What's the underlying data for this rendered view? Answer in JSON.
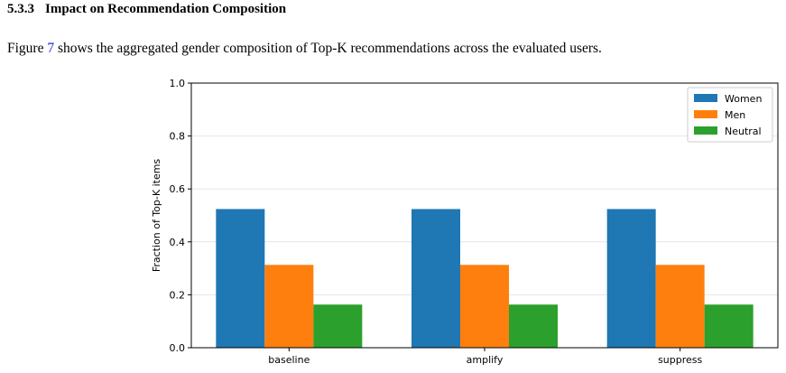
{
  "section": {
    "number": "5.3.3",
    "title": "Impact on Recommendation Composition"
  },
  "paragraph": {
    "before": "Figure ",
    "figure_ref": "7",
    "after": " shows the aggregated gender composition of Top-K recommendations across the evaluated users."
  },
  "chart_data": {
    "type": "bar",
    "categories": [
      "baseline",
      "amplify",
      "suppress"
    ],
    "series": [
      {
        "name": "Women",
        "values": [
          0.524,
          0.524,
          0.524
        ],
        "color": "#1f77b4"
      },
      {
        "name": "Men",
        "values": [
          0.313,
          0.313,
          0.313
        ],
        "color": "#ff7f0e"
      },
      {
        "name": "Neutral",
        "values": [
          0.163,
          0.163,
          0.163
        ],
        "color": "#2ca02c"
      }
    ],
    "ylabel": "Fraction of Top-K items",
    "ylim": [
      0,
      1.0
    ],
    "yticks": [
      "0.0",
      "0.2",
      "0.4",
      "0.6",
      "0.8",
      "1.0"
    ],
    "grid": "horizontal",
    "legend": "top-right"
  }
}
